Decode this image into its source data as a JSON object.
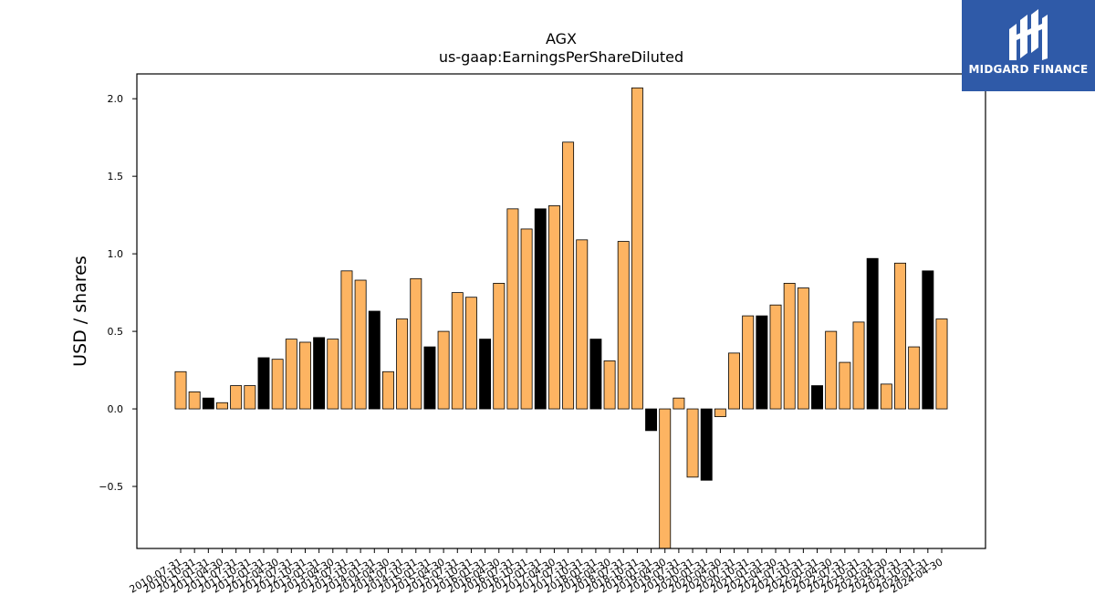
{
  "brand": {
    "name": "MIDGARD FINANCE",
    "bg_color": "#2f5aa8"
  },
  "chart_data": {
    "type": "bar",
    "title": "AGX",
    "subtitle": "us-gaap:EarningsPerShareDiluted",
    "ylabel": "USD / shares",
    "xlabel": "",
    "ylim": [
      -0.9,
      2.16
    ],
    "yticks": [
      -0.5,
      0.0,
      0.5,
      1.0,
      1.5,
      2.0
    ],
    "ytick_labels": [
      "−0.5",
      "0.0",
      "0.5",
      "1.0",
      "1.5",
      "2.0"
    ],
    "colors": {
      "quarterly": "#fdb462",
      "annual": "#000000",
      "edge": "#000000"
    },
    "grid": false,
    "categories": [
      "2010-07-31",
      "2010-10-31",
      "2011-01-31",
      "2011-04-30",
      "2011-07-31",
      "2011-10-31",
      "2012-01-31",
      "2012-04-30",
      "2012-07-31",
      "2012-10-31",
      "2013-01-31",
      "2013-04-30",
      "2013-07-31",
      "2013-10-31",
      "2014-01-31",
      "2014-04-30",
      "2014-07-31",
      "2014-10-31",
      "2015-01-31",
      "2015-04-30",
      "2015-07-31",
      "2015-10-31",
      "2016-01-31",
      "2016-04-30",
      "2016-07-31",
      "2016-10-31",
      "2017-01-31",
      "2017-04-30",
      "2017-07-31",
      "2017-10-31",
      "2018-01-31",
      "2018-04-30",
      "2018-07-31",
      "2018-10-31",
      "2019-01-31",
      "2019-04-30",
      "2019-07-31",
      "2019-10-31",
      "2020-01-31",
      "2020-04-30",
      "2020-07-31",
      "2020-10-31",
      "2021-01-31",
      "2021-04-30",
      "2021-07-31",
      "2021-10-31",
      "2022-01-31",
      "2022-04-30",
      "2022-07-31",
      "2022-10-31",
      "2023-01-31",
      "2023-04-30",
      "2023-07-31",
      "2023-10-31",
      "2024-01-31",
      "2024-04-30"
    ],
    "values": [
      0.24,
      0.11,
      0.07,
      0.04,
      0.15,
      0.15,
      0.33,
      0.32,
      0.45,
      0.43,
      0.46,
      0.45,
      0.89,
      0.83,
      0.63,
      0.24,
      0.58,
      0.84,
      0.4,
      0.5,
      0.75,
      0.72,
      0.45,
      0.81,
      1.29,
      1.16,
      1.29,
      1.31,
      1.72,
      1.09,
      0.45,
      0.31,
      1.08,
      2.07,
      -0.14,
      -0.95,
      0.07,
      -0.44,
      -0.46,
      -0.05,
      0.36,
      0.6,
      0.6,
      0.67,
      0.81,
      0.78,
      0.15,
      0.5,
      0.3,
      0.56,
      0.97,
      0.16,
      0.94,
      0.4,
      0.89,
      0.58
    ],
    "annual": [
      false,
      false,
      true,
      false,
      false,
      false,
      true,
      false,
      false,
      false,
      true,
      false,
      false,
      false,
      true,
      false,
      false,
      false,
      true,
      false,
      false,
      false,
      true,
      false,
      false,
      false,
      true,
      false,
      false,
      false,
      true,
      false,
      false,
      false,
      true,
      false,
      false,
      false,
      true,
      false,
      false,
      false,
      true,
      false,
      false,
      false,
      true,
      false,
      false,
      false,
      true,
      false,
      false,
      false,
      true,
      false
    ]
  }
}
